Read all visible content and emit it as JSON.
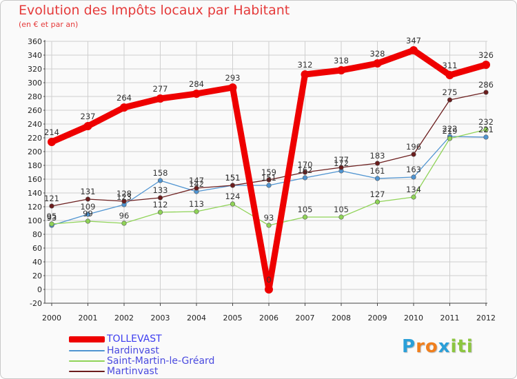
{
  "title": "Evolution des Impôts locaux par Habitant",
  "subtitle": "(en € et par an)",
  "logo": {
    "text": "Proxiti",
    "letters": [
      "P",
      "r",
      "o",
      "x",
      "i",
      "t",
      "i"
    ],
    "colors": [
      "#2a9fd8",
      "#f07f1d",
      "#f07f1d",
      "#2a9fd8",
      "#8cc63f",
      "#8cc63f",
      "#8cc63f"
    ]
  },
  "chart_data": {
    "type": "line",
    "title": "Evolution des Impôts locaux par Habitant",
    "ylabel": "(en € et par an)",
    "xlabel": "",
    "x": [
      "2000",
      "2001",
      "2002",
      "2003",
      "2004",
      "2005",
      "2006",
      "2007",
      "2008",
      "2009",
      "2010",
      "2011",
      "2012"
    ],
    "ylim": [
      -20,
      360
    ],
    "yticks": [
      "-20",
      "0",
      "20",
      "40",
      "60",
      "80",
      "100",
      "120",
      "140",
      "160",
      "180",
      "200",
      "220",
      "240",
      "260",
      "280",
      "300",
      "320",
      "340",
      "360"
    ],
    "grid": true,
    "legend": "bottom-left",
    "series": [
      {
        "name": "TOLLEVAST",
        "color": "#ee0000",
        "values": [
          214,
          237,
          264,
          277,
          284,
          293,
          0,
          312,
          318,
          328,
          347,
          311,
          326
        ],
        "labels": [
          "214",
          "237",
          "264",
          "277",
          "284",
          "293",
          "0",
          "312",
          "318",
          "328",
          "347",
          "311",
          "326"
        ]
      },
      {
        "name": "Hardinvast",
        "color": "#4f94d1",
        "values": [
          93,
          109,
          123,
          158,
          142,
          151,
          151,
          162,
          172,
          161,
          163,
          222,
          221
        ],
        "labels": [
          "93",
          "109",
          "123",
          "158",
          "142",
          "151",
          "151",
          "162",
          "172",
          "161",
          "163",
          "222",
          "221"
        ]
      },
      {
        "name": "Saint-Martin-le-Gréard",
        "color": "#8fd357",
        "values": [
          95,
          99,
          96,
          112,
          113,
          124,
          93,
          105,
          105,
          127,
          134,
          219,
          232
        ],
        "labels": [
          "95",
          "99",
          "96",
          "112",
          "113",
          "124",
          "93",
          "105",
          "105",
          "127",
          "134",
          "219",
          "232"
        ]
      },
      {
        "name": "Martinvast",
        "color": "#6b1d1d",
        "values": [
          121,
          131,
          128,
          133,
          147,
          151,
          159,
          170,
          177,
          183,
          196,
          275,
          286
        ],
        "labels": [
          "121",
          "131",
          "128",
          "133",
          "147",
          "151",
          "159",
          "170",
          "177",
          "183",
          "196",
          "275",
          "286"
        ]
      }
    ]
  }
}
